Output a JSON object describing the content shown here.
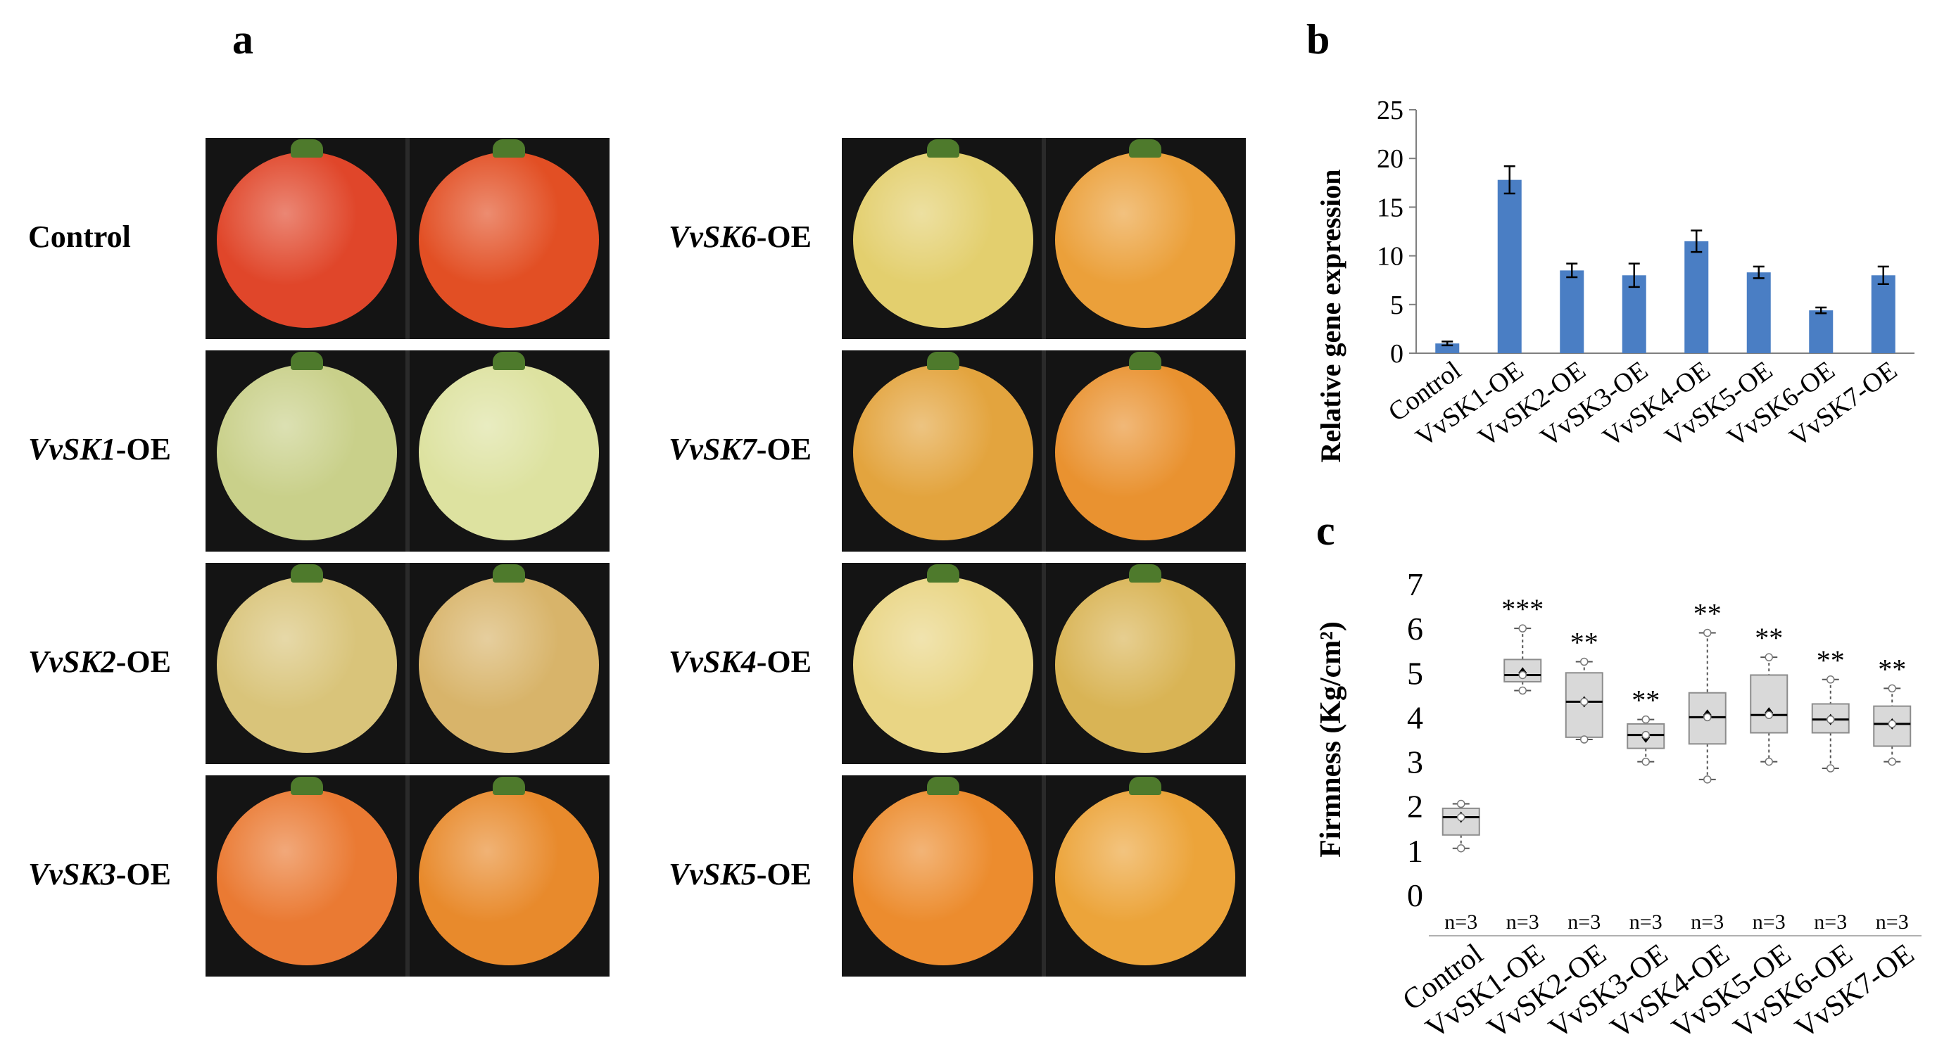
{
  "panels": {
    "a": "a",
    "b": "b",
    "c": "c"
  },
  "photo_panel": {
    "left_column": [
      {
        "prefix": "Control",
        "suffix": "",
        "colors": [
          "#e0462a",
          "#e24f24"
        ]
      },
      {
        "prefix": "VvSK1",
        "suffix": "-OE",
        "colors": [
          "#c9d08a",
          "#dde2a0"
        ]
      },
      {
        "prefix": "VvSK2",
        "suffix": "-OE",
        "colors": [
          "#d9c47a",
          "#d8b46a"
        ]
      },
      {
        "prefix": "VvSK3",
        "suffix": "-OE",
        "colors": [
          "#ea7a33",
          "#e88a2c"
        ]
      }
    ],
    "right_column": [
      {
        "prefix": "VvSK6",
        "suffix": "-OE",
        "colors": [
          "#e3cf6e",
          "#eba03a"
        ]
      },
      {
        "prefix": "VvSK7",
        "suffix": "-OE",
        "colors": [
          "#e3a43e",
          "#e99230"
        ]
      },
      {
        "prefix": "VvSK4",
        "suffix": "-OE",
        "colors": [
          "#e9d584",
          "#d9b455"
        ]
      },
      {
        "prefix": "VvSK5",
        "suffix": "-OE",
        "colors": [
          "#ec8c2e",
          "#eca43a"
        ]
      }
    ]
  },
  "chart_data": [
    {
      "panel": "b",
      "type": "bar",
      "ylabel": "Relative gene expression",
      "xlabel": "",
      "categories": [
        "Control",
        "VvSK1-OE",
        "VvSK2-OE",
        "VvSK3-OE",
        "VvSK4-OE",
        "VvSK5-OE",
        "VvSK6-OE",
        "VvSK7-OE"
      ],
      "values": [
        1.0,
        17.8,
        8.5,
        8.0,
        11.5,
        8.3,
        4.4,
        8.0
      ],
      "errors": [
        0.2,
        1.4,
        0.7,
        1.2,
        1.1,
        0.6,
        0.3,
        0.9
      ],
      "ylim": [
        0,
        25
      ],
      "yticks": [
        "0",
        "5",
        "10",
        "15",
        "20",
        "25"
      ],
      "bar_color": "#4a7ec4",
      "grid": false
    },
    {
      "panel": "c",
      "type": "box",
      "ylabel": "Firmness (Kg/cm²)",
      "xlabel": "",
      "categories": [
        "Control",
        "VvSK1-OE",
        "VvSK2-OE",
        "VvSK3-OE",
        "VvSK4-OE",
        "VvSK5-OE",
        "VvSK6-OE",
        "VvSK7-OE"
      ],
      "ylim": [
        0,
        7
      ],
      "yticks": [
        "0",
        "1",
        "2",
        "3",
        "4",
        "5",
        "6",
        "7"
      ],
      "boxes": [
        {
          "min": 1.05,
          "q1": 1.35,
          "median": 1.75,
          "q3": 1.95,
          "max": 2.05,
          "mean": 1.75
        },
        {
          "min": 4.6,
          "q1": 4.8,
          "median": 4.95,
          "q3": 5.3,
          "max": 6.0,
          "mean": 5.0
        },
        {
          "min": 3.5,
          "q1": 3.55,
          "median": 4.35,
          "q3": 5.0,
          "max": 5.25,
          "mean": 4.35
        },
        {
          "min": 3.0,
          "q1": 3.3,
          "median": 3.6,
          "q3": 3.85,
          "max": 3.95,
          "mean": 3.55
        },
        {
          "min": 2.6,
          "q1": 3.4,
          "median": 4.0,
          "q3": 4.55,
          "max": 5.9,
          "mean": 4.05
        },
        {
          "min": 3.0,
          "q1": 3.65,
          "median": 4.05,
          "q3": 4.95,
          "max": 5.35,
          "mean": 4.1
        },
        {
          "min": 2.85,
          "q1": 3.65,
          "median": 3.95,
          "q3": 4.3,
          "max": 4.85,
          "mean": 3.95
        },
        {
          "min": 3.0,
          "q1": 3.35,
          "median": 3.85,
          "q3": 4.25,
          "max": 4.65,
          "mean": 3.85
        }
      ],
      "significance": [
        "",
        "***",
        "**",
        "**",
        "**",
        "**",
        "**",
        "**"
      ],
      "n_labels": [
        "n=3",
        "n=3",
        "n=3",
        "n=3",
        "n=3",
        "n=3",
        "n=3",
        "n=3"
      ],
      "box_color": "#d9d9d9",
      "grid": false
    }
  ]
}
